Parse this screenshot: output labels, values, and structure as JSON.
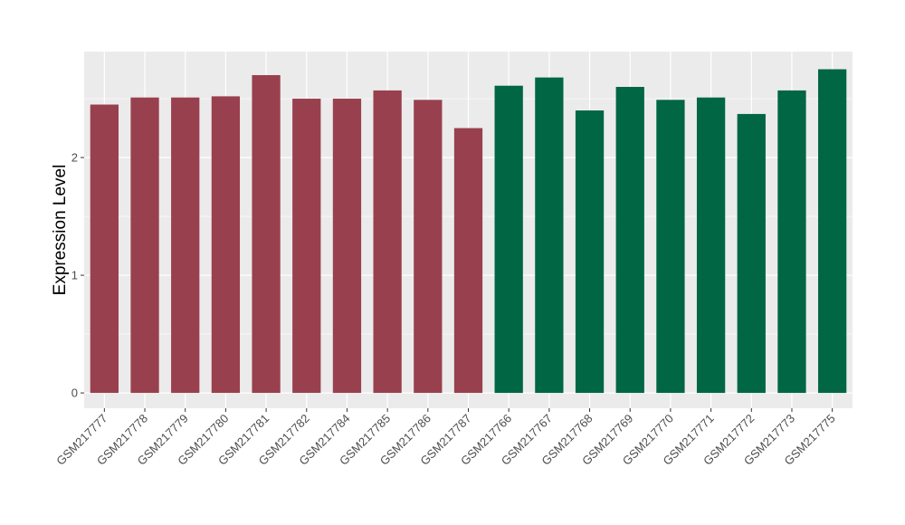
{
  "chart_data": {
    "type": "bar",
    "ylabel": "Expression Level",
    "xlabel": "",
    "title": "",
    "ylim": [
      -0.13,
      2.9
    ],
    "yticks": [
      0,
      1,
      2
    ],
    "ytick_labels": [
      "0",
      "1",
      "2"
    ],
    "grid": true,
    "legend": "none",
    "categories": [
      "GSM217777",
      "GSM217778",
      "GSM217779",
      "GSM217780",
      "GSM217781",
      "GSM217782",
      "GSM217784",
      "GSM217785",
      "GSM217786",
      "GSM217787",
      "GSM217766",
      "GSM217767",
      "GSM217768",
      "GSM217769",
      "GSM217770",
      "GSM217771",
      "GSM217772",
      "GSM217773",
      "GSM217775"
    ],
    "values": [
      2.45,
      2.51,
      2.51,
      2.52,
      2.7,
      2.5,
      2.5,
      2.57,
      2.49,
      2.25,
      2.61,
      2.68,
      2.4,
      2.6,
      2.49,
      2.51,
      2.37,
      2.57,
      2.75
    ],
    "group": [
      1,
      1,
      1,
      1,
      1,
      1,
      1,
      1,
      1,
      1,
      2,
      2,
      2,
      2,
      2,
      2,
      2,
      2,
      2
    ],
    "colors": {
      "group1": "#99404e",
      "group2": "#006644",
      "panel": "#ebebeb",
      "grid": "#ffffff"
    }
  }
}
